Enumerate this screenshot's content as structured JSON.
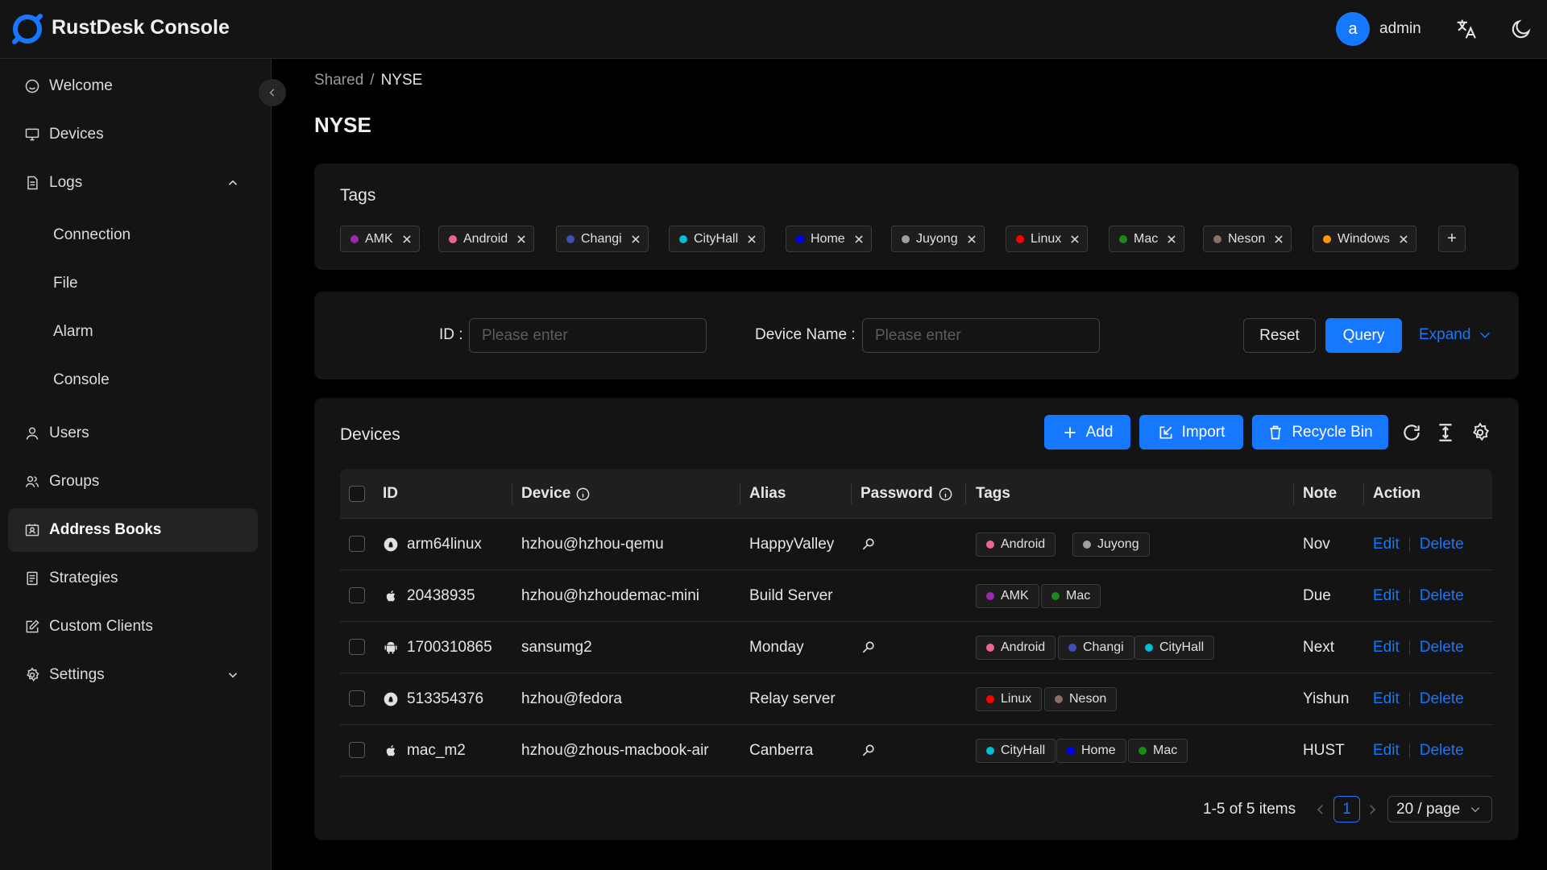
{
  "header": {
    "app_title": "RustDesk Console",
    "avatar_letter": "a",
    "username": "admin",
    "icons": [
      "rustdesk-logo-icon",
      "translate-icon",
      "moon-icon"
    ]
  },
  "sidebar": {
    "items": [
      {
        "label": "Welcome",
        "icon": "smile-icon"
      },
      {
        "label": "Devices",
        "icon": "desktop-icon"
      },
      {
        "label": "Logs",
        "icon": "file-icon",
        "expanded": true
      },
      {
        "label": "Connection"
      },
      {
        "label": "File"
      },
      {
        "label": "Alarm"
      },
      {
        "label": "Console"
      },
      {
        "label": "Users",
        "icon": "user-icon"
      },
      {
        "label": "Groups",
        "icon": "team-icon"
      },
      {
        "label": "Address Books",
        "icon": "contacts-icon",
        "active": true
      },
      {
        "label": "Strategies",
        "icon": "audit-icon"
      },
      {
        "label": "Custom Clients",
        "icon": "form-icon"
      },
      {
        "label": "Settings",
        "icon": "setting-icon",
        "expanded": false
      }
    ]
  },
  "breadcrumb": {
    "parent": "Shared",
    "separator": "/",
    "current": "NYSE"
  },
  "page_title": "NYSE",
  "tags_card": {
    "title": "Tags",
    "tags": [
      {
        "name": "AMK",
        "color": "#9c27b0"
      },
      {
        "name": "Android",
        "color": "#f06292"
      },
      {
        "name": "Changi",
        "color": "#3f51b5"
      },
      {
        "name": "CityHall",
        "color": "#00bcd4"
      },
      {
        "name": "Home",
        "color": "#0000ff"
      },
      {
        "name": "Juyong",
        "color": "#9e9e9e"
      },
      {
        "name": "Linux",
        "color": "#ff0000"
      },
      {
        "name": "Mac",
        "color": "#1b8a1b"
      },
      {
        "name": "Neson",
        "color": "#8d6e63"
      },
      {
        "name": "Windows",
        "color": "#ff9800"
      }
    ],
    "add_label": "+"
  },
  "filter": {
    "id_label": "ID",
    "id_placeholder": "Please enter",
    "device_name_label": "Device Name",
    "device_name_placeholder": "Please enter",
    "reset_label": "Reset",
    "query_label": "Query",
    "expand_label": "Expand"
  },
  "devices_card": {
    "title": "Devices",
    "add_label": "Add",
    "import_label": "Import",
    "recycle_label": "Recycle Bin",
    "columns": [
      "ID",
      "Device",
      "Alias",
      "Password",
      "Tags",
      "Note",
      "Action"
    ],
    "rows": [
      {
        "id": "arm64linux",
        "os": "linux-icon",
        "device": "hzhou@hzhou-qemu",
        "alias": "HappyValley",
        "has_password": true,
        "tags": [
          "Android",
          "Juyong"
        ],
        "note": "Nov"
      },
      {
        "id": "20438935",
        "os": "apple-icon",
        "device": "hzhou@hzhoudemac-mini",
        "alias": "Build Server",
        "has_password": false,
        "tags": [
          "AMK",
          "Mac"
        ],
        "note": "Due"
      },
      {
        "id": "1700310865",
        "os": "android-icon",
        "device": "sansumg2",
        "alias": "Monday",
        "has_password": true,
        "tags": [
          "Android",
          "Changi",
          "CityHall"
        ],
        "note": "Next"
      },
      {
        "id": "513354376",
        "os": "linux-icon",
        "device": "hzhou@fedora",
        "alias": "Relay server",
        "has_password": false,
        "tags": [
          "Linux",
          "Neson"
        ],
        "note": "Yishun"
      },
      {
        "id": "mac_m2",
        "os": "apple-icon",
        "device": "hzhou@zhous-macbook-air",
        "alias": "Canberra",
        "has_password": true,
        "tags": [
          "CityHall",
          "Home",
          "Mac"
        ],
        "note": "HUST"
      }
    ],
    "edit_label": "Edit",
    "delete_label": "Delete"
  },
  "pagination": {
    "summary": "1-5 of 5 items",
    "current_page": "1",
    "page_size": "20 / page"
  },
  "colors": {
    "accent": "#1677ff",
    "background": "#000000",
    "panel": "#141414"
  }
}
